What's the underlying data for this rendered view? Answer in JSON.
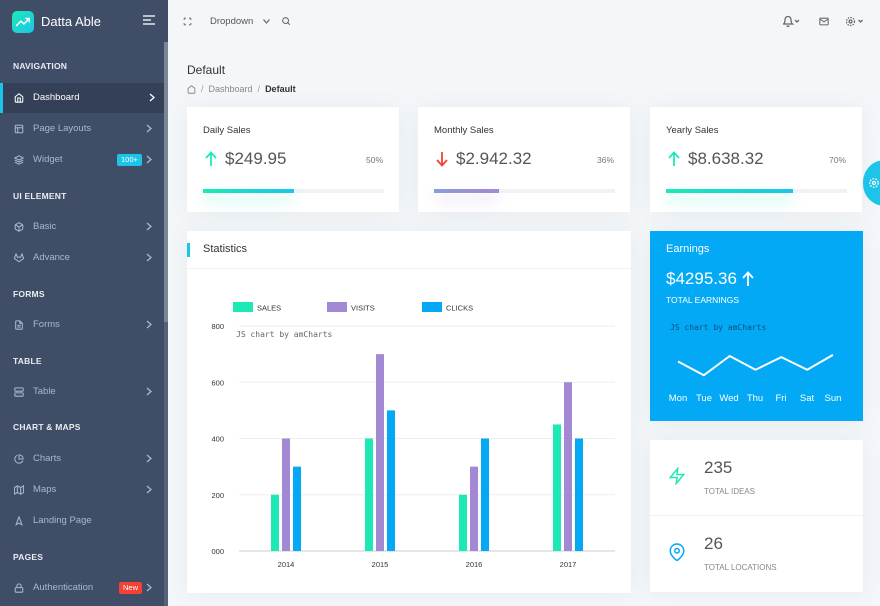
{
  "brand": {
    "name": "Datta Able",
    "logo_icon": "trending-up-icon"
  },
  "navigation": [
    {
      "caption": "NAVIGATION",
      "items": [
        {
          "label": "Dashboard",
          "icon": "home-icon",
          "active": true
        },
        {
          "label": "Page Layouts",
          "icon": "layout-icon"
        },
        {
          "label": "Widget",
          "icon": "layers-icon",
          "badge": "100+"
        }
      ]
    },
    {
      "caption": "UI ELEMENT",
      "items": [
        {
          "label": "Basic",
          "icon": "box-icon"
        },
        {
          "label": "Advance",
          "icon": "gitlab-icon"
        }
      ]
    },
    {
      "caption": "FORMS",
      "items": [
        {
          "label": "Forms",
          "icon": "file-text-icon"
        }
      ]
    },
    {
      "caption": "TABLE",
      "items": [
        {
          "label": "Table",
          "icon": "server-icon"
        }
      ]
    },
    {
      "caption": "CHART & MAPS",
      "items": [
        {
          "label": "Charts",
          "icon": "pie-chart-icon"
        },
        {
          "label": "Maps",
          "icon": "map-icon"
        },
        {
          "label": "Landing Page",
          "icon": "navigation-icon"
        }
      ]
    },
    {
      "caption": "PAGES",
      "items": [
        {
          "label": "Authentication",
          "icon": "lock-icon",
          "badge": "New"
        }
      ]
    }
  ],
  "topbar": {
    "dropdown_label": "Dropdown"
  },
  "page": {
    "title": "Default",
    "breadcrumb": [
      "Dashboard",
      "Default"
    ]
  },
  "sales_cards": [
    {
      "title": "Daily Sales",
      "value": "$249.95",
      "percent": "50%",
      "progress": 0.5,
      "trend": "up"
    },
    {
      "title": "Monthly Sales",
      "value": "$2.942.32",
      "percent": "36%",
      "progress": 0.36,
      "trend": "down"
    },
    {
      "title": "Yearly Sales",
      "value": "$8.638.32",
      "percent": "70%",
      "progress": 0.7,
      "trend": "up"
    }
  ],
  "statistics": {
    "title": "Statistics",
    "chart_data": {
      "type": "bar",
      "categories": [
        "2014",
        "2015",
        "2016",
        "2017"
      ],
      "series": [
        {
          "name": "SALES",
          "color": "#1de9b6",
          "values": [
            200,
            400,
            200,
            450
          ]
        },
        {
          "name": "VISITS",
          "color": "#a389d4",
          "values": [
            400,
            700,
            300,
            600
          ]
        },
        {
          "name": "CLICKS",
          "color": "#04a9f5",
          "values": [
            300,
            500,
            400,
            400
          ]
        }
      ],
      "ylim": [
        0,
        800
      ],
      "yticks": [
        "000",
        "200",
        "400",
        "600",
        "800"
      ],
      "credit": "JS chart by amCharts",
      "legend_position": "top"
    }
  },
  "earnings": {
    "title": "Earnings",
    "value": "$4295.36",
    "label": "TOTAL EARNINGS",
    "credit": "JS chart by amCharts",
    "chart_data": {
      "type": "line",
      "categories": [
        "Mon",
        "Tue",
        "Wed",
        "Thu",
        "Fri",
        "Sat",
        "Sun"
      ],
      "values": [
        50,
        25,
        60,
        35,
        58,
        35,
        62
      ],
      "ylim": [
        0,
        100
      ]
    }
  },
  "info": [
    {
      "value": "235",
      "label": "TOTAL IDEAS",
      "icon": "zap-icon"
    },
    {
      "value": "26",
      "label": "TOTAL LOCATIONS",
      "icon": "map-pin-icon"
    }
  ],
  "colors": {
    "sidebar": "#3f4d67",
    "accent": "#1dc4e9",
    "success": "#1de9b6",
    "danger": "#f44236",
    "purple": "#a389d4",
    "earnings_bg": "#04a9f5"
  }
}
